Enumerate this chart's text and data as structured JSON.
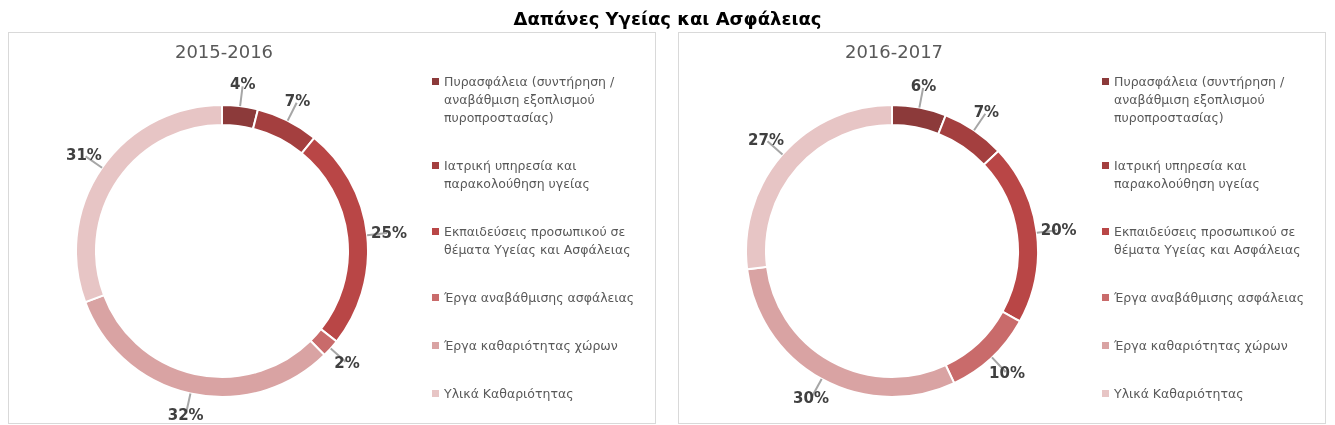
{
  "chart_data": [
    {
      "type": "other",
      "title": "Δαπάνες Υγείας και Ασφάλειας"
    },
    {
      "type": "donut",
      "title": "2015-2016",
      "legend": "right",
      "categories": [
        "Πυρασφάλεια (συντήρηση / αναβάθμιση εξοπλισμού πυροπροστασίας)",
        "Ιατρική υπηρεσία και παρακολούθηση υγείας",
        "Εκπαιδεύσεις προσωπικού σε θέματα Υγείας και Ασφάλειας",
        "Έργα αναβάθμισης ασφάλειας",
        "Έργα καθαριότητας χώρων",
        "Υλικά Καθαριότητας"
      ],
      "values": [
        4,
        7,
        25,
        2,
        32,
        31
      ],
      "value_labels": [
        "4%",
        "7%",
        "25%",
        "2%",
        "32%",
        "31%"
      ],
      "colors": [
        "#8c3a3a",
        "#a43f3f",
        "#b94646",
        "#c96b6b",
        "#d9a3a3",
        "#e7c5c5"
      ]
    },
    {
      "type": "donut",
      "title": "2016-2017",
      "legend": "right",
      "categories": [
        "Πυρασφάλεια (συντήρηση / αναβάθμιση εξοπλισμού πυροπροστασίας)",
        "Ιατρική υπηρεσία και παρακολούθηση υγείας",
        "Εκπαιδεύσεις προσωπικού σε θέματα Υγείας και Ασφάλειας",
        "Έργα αναβάθμισης ασφάλειας",
        "Έργα καθαριότητας χώρων",
        "Υλικά Καθαριότητας"
      ],
      "values": [
        6,
        7,
        20,
        10,
        30,
        27
      ],
      "value_labels": [
        "6%",
        "7%",
        "20%",
        "10%",
        "30%",
        "27%"
      ],
      "colors": [
        "#8c3a3a",
        "#a43f3f",
        "#b94646",
        "#c96b6b",
        "#d9a3a3",
        "#e7c5c5"
      ]
    }
  ]
}
